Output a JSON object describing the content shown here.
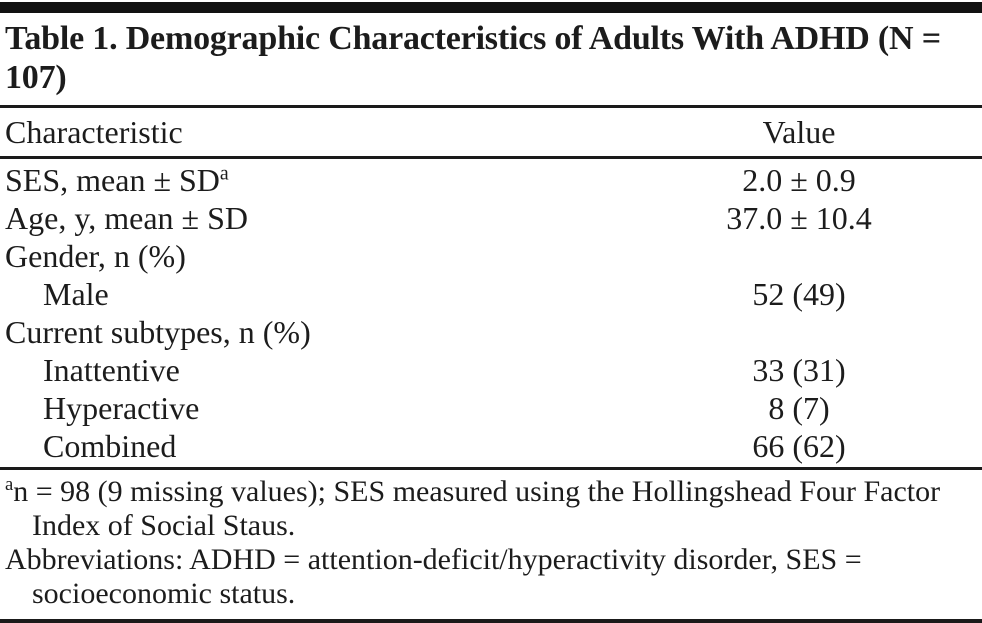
{
  "header": {
    "title": "Table 1. Demographic Characteristics of Adults With ADHD (N = 107)"
  },
  "table": {
    "columns": {
      "characteristic": "Characteristic",
      "value": "Value"
    },
    "rows": [
      {
        "label": "SES, mean ± SD",
        "sup": "a",
        "value": "2.0 ± 0.9",
        "indent": false
      },
      {
        "label": "Age, y, mean ± SD",
        "value": "37.0 ± 10.4",
        "indent": false
      },
      {
        "label": "Gender, n (%)",
        "value": "",
        "indent": false
      },
      {
        "label": "Male",
        "value": "52 (49)",
        "indent": true
      },
      {
        "label": "Current subtypes, n (%)",
        "value": "",
        "indent": false
      },
      {
        "label": "Inattentive",
        "value": "33 (31)",
        "indent": true
      },
      {
        "label": "Hyperactive",
        "value": "8 (7)",
        "indent": true
      },
      {
        "label": "Combined",
        "value": "66 (62)",
        "indent": true
      }
    ]
  },
  "footnotes": {
    "note_a_marker": "a",
    "note_a": "n = 98 (9 missing values); SES measured using the Hollingshead Four Factor Index of Social Staus.",
    "abbreviations": "Abbreviations: ADHD = attention-deficit/hyperactivity disorder, SES = socioeconomic status."
  },
  "colors": {
    "text": "#1c1c1c",
    "rule": "#1a1a1a",
    "background": "#ffffff"
  }
}
